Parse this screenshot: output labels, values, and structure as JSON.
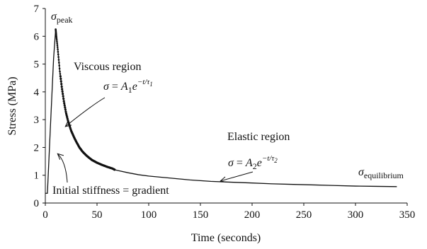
{
  "chart_data": {
    "type": "line",
    "xlabel": "Time (seconds)",
    "ylabel": "Stress (MPa)",
    "xlim": [
      0,
      350
    ],
    "ylim": [
      0,
      7
    ],
    "x_ticks": [
      "0",
      "50",
      "100",
      "150",
      "200",
      "250",
      "300",
      "350"
    ],
    "y_ticks": [
      "0",
      "1",
      "2",
      "3",
      "4",
      "5",
      "6",
      "7"
    ],
    "grid": false,
    "series": [
      {
        "x": [
          0,
          2,
          5,
          8,
          10,
          12,
          14,
          16,
          18,
          20,
          22,
          25,
          28,
          30,
          33,
          36,
          40,
          45,
          50,
          55,
          60,
          65,
          67,
          70,
          80,
          90,
          100,
          120,
          140,
          160,
          180,
          200,
          220,
          240,
          260,
          280,
          300,
          320,
          340
        ],
        "y": [
          0.35,
          0.35,
          2.8,
          5.2,
          6.25,
          5.55,
          4.75,
          4.15,
          3.65,
          3.25,
          2.95,
          2.6,
          2.35,
          2.2,
          2.0,
          1.85,
          1.7,
          1.55,
          1.45,
          1.37,
          1.3,
          1.24,
          1.2,
          1.17,
          1.09,
          1.02,
          0.97,
          0.9,
          0.83,
          0.78,
          0.75,
          0.72,
          0.69,
          0.67,
          0.65,
          0.63,
          0.61,
          0.6,
          0.59
        ]
      }
    ],
    "viscous_region_end_x": 67,
    "annotations": {
      "peak": {
        "symbol": "σ",
        "subscript": "peak",
        "x": 10,
        "y": 6.25
      },
      "viscous": {
        "label": "Viscous region",
        "equation": {
          "lhs": "σ",
          "eq": " = ",
          "coef": "A",
          "coef_sub": "1",
          "base": "e",
          "exponent": "−t/τ",
          "exponent_sub": "1"
        },
        "arrow_target": {
          "x": 18,
          "y": 2.7
        }
      },
      "elastic": {
        "label": "Elastic region",
        "equation": {
          "lhs": "σ",
          "eq": " = ",
          "coef": "A",
          "coef_sub": "2",
          "base": "e",
          "exponent": "−t/τ",
          "exponent_sub": "2"
        },
        "arrow_target": {
          "x": 168,
          "y": 0.74
        }
      },
      "equilibrium": {
        "symbol": "σ",
        "subscript": "equilibrium"
      },
      "stiffness": {
        "label": "Initial stiffness = gradient",
        "arrow_target": {
          "x": 5,
          "y": 1.85
        }
      }
    }
  }
}
